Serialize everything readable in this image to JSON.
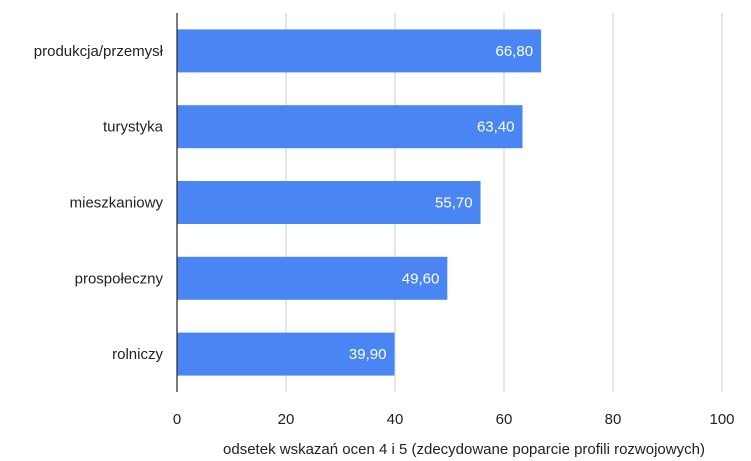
{
  "chart_data": {
    "type": "bar",
    "orientation": "horizontal",
    "categories": [
      "produkcja/przemysł",
      "turystyka",
      "mieszkaniowy",
      "prospołeczny",
      "rolniczy"
    ],
    "values": [
      66.8,
      63.4,
      55.7,
      49.6,
      39.9
    ],
    "value_labels": [
      "66,80",
      "63,40",
      "55,70",
      "49,60",
      "39,90"
    ],
    "x_ticks": [
      "0",
      "20",
      "40",
      "60",
      "80",
      "100"
    ],
    "xlim": [
      0,
      100
    ],
    "xlabel": "odsetek wskazań ocen 4 i 5 (zdecydowane poparcie profili rozwojowych)",
    "ylabel": "",
    "title": "",
    "grid": "vertical",
    "legend": "none",
    "bar_color": "#4a86f3",
    "grid_color": "#cccccc",
    "axis_color": "#333333"
  }
}
